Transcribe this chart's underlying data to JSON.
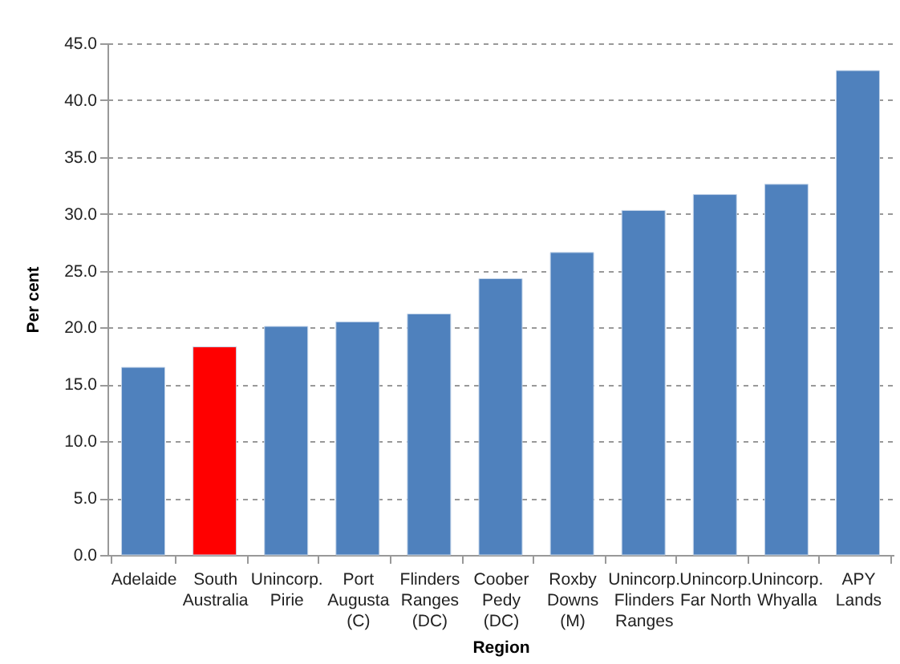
{
  "chart_data": {
    "type": "bar",
    "xlabel": "Region",
    "ylabel": "Per cent",
    "categories": [
      "Adelaide",
      "South\nAustralia",
      "Unincorp.\nPirie",
      "Port\nAugusta\n(C)",
      "Flinders\nRanges\n(DC)",
      "Coober\nPedy\n(DC)",
      "Roxby\nDowns\n(M)",
      "Unincorp.\nFlinders\nRanges",
      "Unincorp.\nFar North",
      "Unincorp.\nWhyalla",
      "APY\nLands"
    ],
    "values": [
      16.5,
      18.3,
      20.1,
      20.5,
      21.2,
      24.3,
      26.6,
      30.3,
      31.7,
      32.6,
      42.6
    ],
    "colors": [
      "#4f81bd",
      "#ff0000",
      "#4f81bd",
      "#4f81bd",
      "#4f81bd",
      "#4f81bd",
      "#4f81bd",
      "#4f81bd",
      "#4f81bd",
      "#4f81bd",
      "#4f81bd"
    ],
    "ylim": [
      0,
      45
    ],
    "yticks": [
      {
        "value": 0,
        "label": "0.0"
      },
      {
        "value": 5,
        "label": "5.0"
      },
      {
        "value": 10,
        "label": "10.0"
      },
      {
        "value": 15,
        "label": "15.0"
      },
      {
        "value": 20,
        "label": "20.0"
      },
      {
        "value": 25,
        "label": "25.0"
      },
      {
        "value": 30,
        "label": "30.0"
      },
      {
        "value": 35,
        "label": "35.0"
      },
      {
        "value": 40,
        "label": "40.0"
      },
      {
        "value": 45,
        "label": "45.0"
      }
    ],
    "grid": "y"
  }
}
